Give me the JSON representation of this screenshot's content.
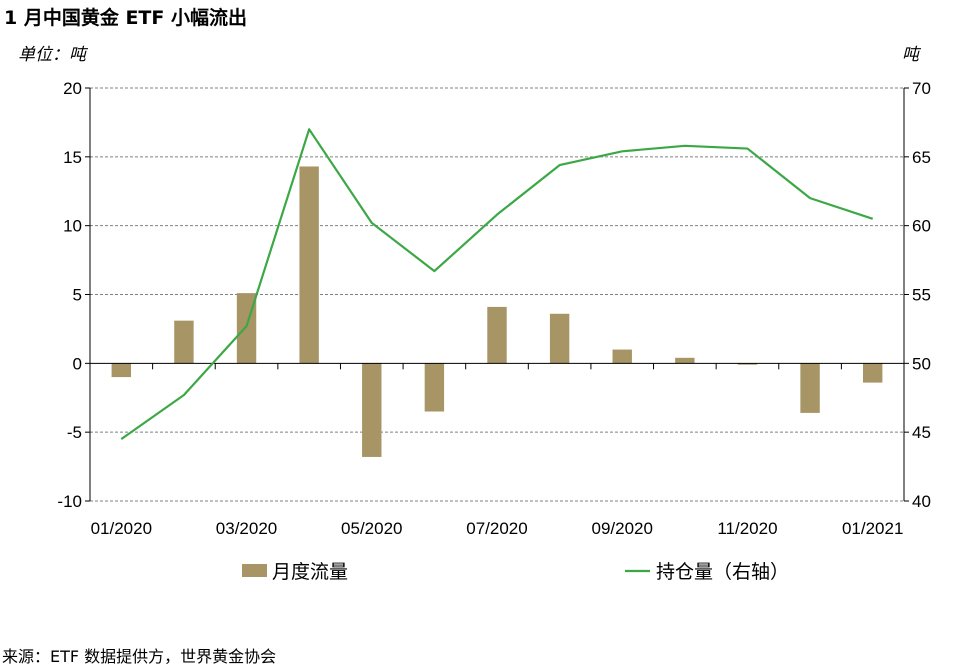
{
  "title": "1 月中国黄金 ETF 小幅流出",
  "unit_left": "单位：吨",
  "unit_right": "吨",
  "source": "来源：ETF 数据提供方，世界黄金协会",
  "colors": {
    "bar": "#a89566",
    "line": "#3ca845",
    "grid": "#808080",
    "axis": "#000000"
  },
  "chart_data": {
    "type": "bar+line",
    "categories": [
      "01/2020",
      "02/2020",
      "03/2020",
      "04/2020",
      "05/2020",
      "06/2020",
      "07/2020",
      "08/2020",
      "09/2020",
      "10/2020",
      "11/2020",
      "12/2020",
      "01/2021"
    ],
    "x_tick_labels": [
      "01/2020",
      "03/2020",
      "05/2020",
      "07/2020",
      "09/2020",
      "11/2020",
      "01/2021"
    ],
    "series": [
      {
        "name": "月度流量",
        "type": "bar",
        "axis": "left",
        "values": [
          -1.0,
          3.1,
          5.1,
          14.3,
          -6.8,
          -3.5,
          4.1,
          3.6,
          1.0,
          0.4,
          -0.1,
          -3.6,
          -1.4
        ]
      },
      {
        "name": "持仓量（右轴）",
        "type": "line",
        "axis": "right",
        "values": [
          44.5,
          47.7,
          52.7,
          67.0,
          60.2,
          56.7,
          60.8,
          64.4,
          65.4,
          65.8,
          65.6,
          62.0,
          60.5
        ]
      }
    ],
    "y_left": {
      "lim": [
        -10,
        20
      ],
      "ticks": [
        "-10",
        "-5",
        "0",
        "5",
        "10",
        "15",
        "20"
      ]
    },
    "y_right": {
      "lim": [
        40,
        70
      ],
      "ticks": [
        "40",
        "45",
        "50",
        "55",
        "60",
        "65",
        "70"
      ]
    },
    "grid": true,
    "legend_position": "bottom"
  }
}
